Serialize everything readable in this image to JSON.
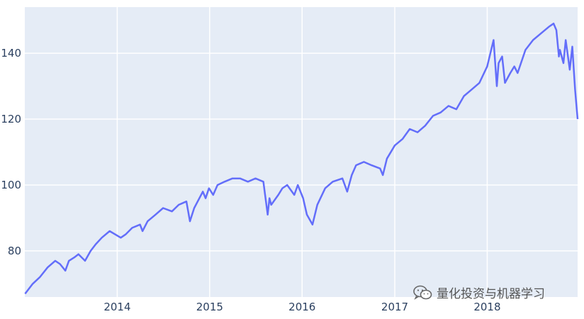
{
  "chart_data": {
    "type": "line",
    "title": "",
    "xlabel": "",
    "ylabel": "",
    "grid": true,
    "legend": "none",
    "xlim": [
      "2013-01-01",
      "2018-12-24"
    ],
    "ylim": [
      66,
      154
    ],
    "x_ticks": [
      "2014",
      "2015",
      "2016",
      "2017",
      "2018"
    ],
    "y_ticks": [
      80,
      100,
      120,
      140
    ],
    "series": [
      {
        "color": "#636efa",
        "x": [
          "2013-01-02",
          "2013-02-01",
          "2013-03-01",
          "2013-04-01",
          "2013-05-01",
          "2013-05-20",
          "2013-06-10",
          "2013-06-24",
          "2013-07-15",
          "2013-08-01",
          "2013-08-27",
          "2013-09-18",
          "2013-10-08",
          "2013-11-01",
          "2013-12-02",
          "2014-01-15",
          "2014-02-03",
          "2014-03-01",
          "2014-04-01",
          "2014-04-11",
          "2014-05-01",
          "2014-06-01",
          "2014-07-01",
          "2014-08-05",
          "2014-09-01",
          "2014-10-01",
          "2014-10-15",
          "2014-11-01",
          "2014-12-05",
          "2014-12-16",
          "2014-12-29",
          "2015-01-15",
          "2015-02-01",
          "2015-03-01",
          "2015-04-01",
          "2015-05-01",
          "2015-06-01",
          "2015-07-01",
          "2015-08-01",
          "2015-08-18",
          "2015-08-25",
          "2015-09-01",
          "2015-09-29",
          "2015-10-15",
          "2015-11-03",
          "2015-12-01",
          "2015-12-15",
          "2016-01-05",
          "2016-01-20",
          "2016-02-11",
          "2016-03-01",
          "2016-04-01",
          "2016-05-01",
          "2016-06-08",
          "2016-06-27",
          "2016-07-15",
          "2016-08-01",
          "2016-09-01",
          "2016-10-01",
          "2016-11-04",
          "2016-11-15",
          "2016-12-01",
          "2017-01-01",
          "2017-02-01",
          "2017-03-01",
          "2017-04-01",
          "2017-05-01",
          "2017-06-01",
          "2017-07-01",
          "2017-08-01",
          "2017-09-01",
          "2017-10-01",
          "2017-11-01",
          "2017-12-01",
          "2018-01-01",
          "2018-01-26",
          "2018-02-08",
          "2018-02-15",
          "2018-03-01",
          "2018-03-12",
          "2018-04-02",
          "2018-04-18",
          "2018-05-01",
          "2018-06-01",
          "2018-07-01",
          "2018-08-01",
          "2018-09-01",
          "2018-09-20",
          "2018-10-01",
          "2018-10-11",
          "2018-10-15",
          "2018-10-29",
          "2018-11-07",
          "2018-11-23",
          "2018-12-03",
          "2018-12-14",
          "2018-12-24"
        ],
        "y": [
          67,
          70,
          72,
          75,
          77,
          76,
          74,
          77,
          78,
          79,
          77,
          80,
          82,
          84,
          86,
          84,
          85,
          87,
          88,
          86,
          89,
          91,
          93,
          92,
          94,
          95,
          89,
          93,
          98,
          96,
          99,
          97,
          100,
          101,
          102,
          102,
          101,
          102,
          101,
          91,
          96,
          94,
          97,
          99,
          100,
          97,
          100,
          96,
          91,
          88,
          94,
          99,
          101,
          102,
          98,
          103,
          106,
          107,
          106,
          105,
          103,
          108,
          112,
          114,
          117,
          116,
          118,
          121,
          122,
          124,
          123,
          127,
          129,
          131,
          136,
          144,
          130,
          137,
          139,
          131,
          134,
          136,
          134,
          141,
          144,
          146,
          148,
          149,
          147,
          139,
          141,
          137,
          144,
          135,
          142,
          129,
          120
        ]
      }
    ]
  },
  "watermark": {
    "text": "量化投资与机器学习",
    "icon": "wechat-icon"
  }
}
